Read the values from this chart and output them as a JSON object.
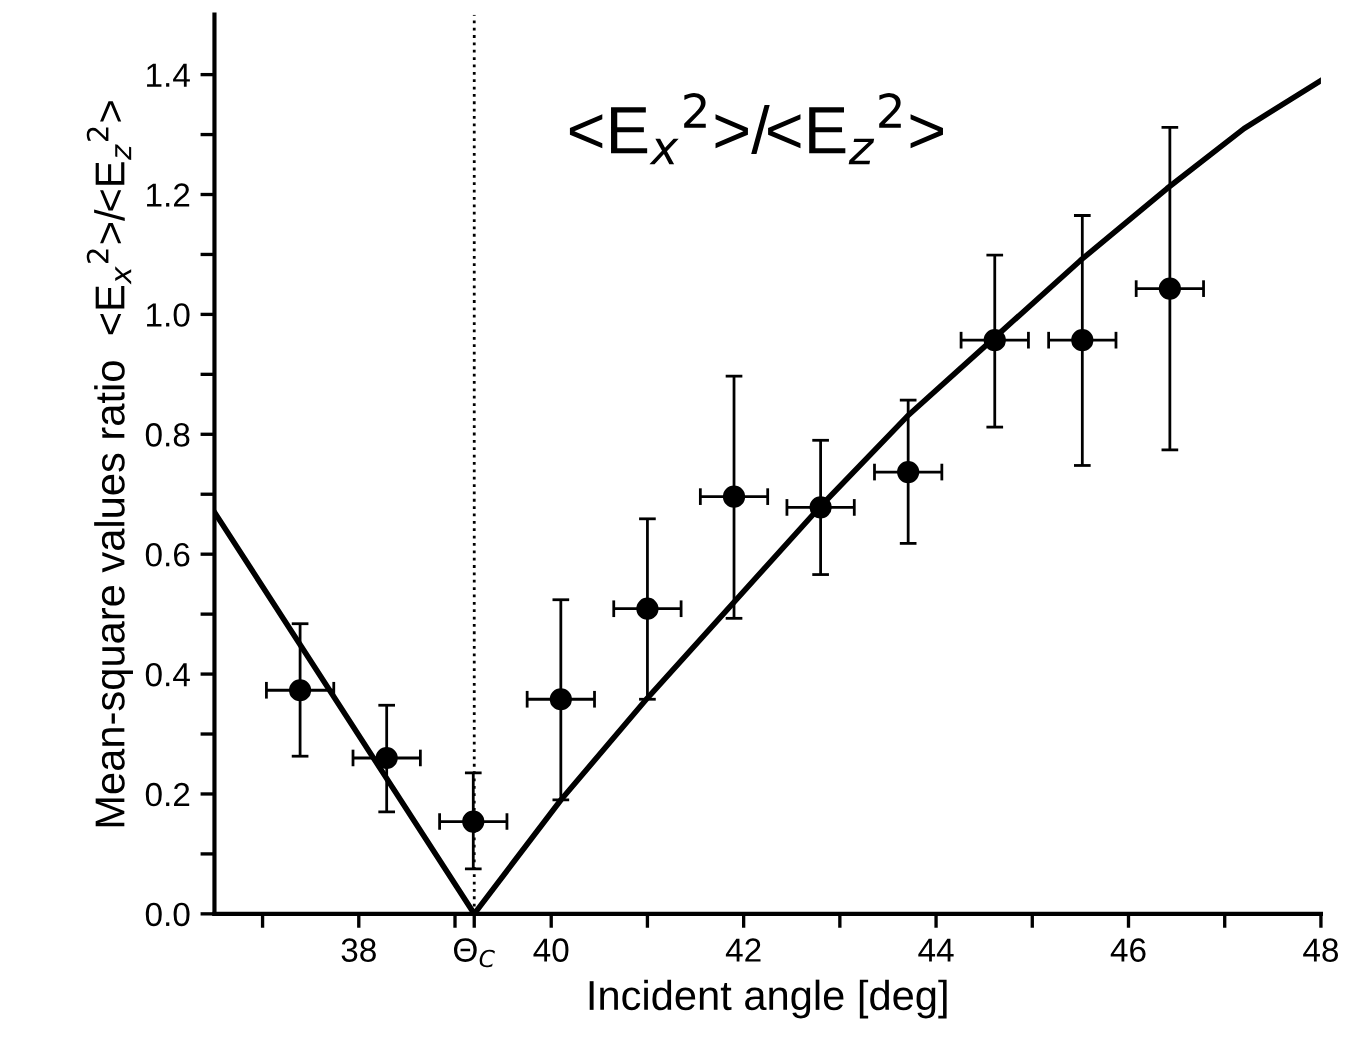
{
  "chart_data": {
    "type": "scatter",
    "xlabel": "Incident angle [deg]",
    "ylabel": "Mean-square values ratio  <E$_{x}$$^{2}$>/<E$_{z}$$^{2}$>",
    "annotations": [
      "<E$_{x}$$^{2}$>/<E$_{z}$$^{2}$>"
    ],
    "xlim": [
      36.5,
      48
    ],
    "ylim": [
      0,
      1.5
    ],
    "xticks": [
      {
        "value": 37,
        "label": null
      },
      38,
      {
        "value": 39,
        "label": null
      },
      {
        "value": 39.2,
        "label": "Θ$_{C}$"
      },
      40,
      {
        "value": 41,
        "label": null
      },
      42,
      {
        "value": 43,
        "label": null
      },
      44,
      {
        "value": 45,
        "label": null
      },
      46,
      {
        "value": 47,
        "label": null
      },
      48
    ],
    "yticks": [
      {
        "value": 0,
        "label": "0.0"
      },
      {
        "value": 0.1,
        "label": null
      },
      {
        "value": 0.2,
        "label": "0.2"
      },
      {
        "value": 0.3,
        "label": null
      },
      {
        "value": 0.4,
        "label": "0.4"
      },
      {
        "value": 0.5,
        "label": null
      },
      {
        "value": 0.6,
        "label": "0.6"
      },
      {
        "value": 0.7,
        "label": null
      },
      {
        "value": 0.8,
        "label": "0.8"
      },
      {
        "value": 0.9,
        "label": null
      },
      {
        "value": 1.0,
        "label": "1.0"
      },
      {
        "value": 1.1,
        "label": null
      },
      {
        "value": 1.2,
        "label": "1.2"
      },
      {
        "value": 1.3,
        "label": null
      },
      {
        "value": 1.4,
        "label": "1.4"
      }
    ],
    "grid": false,
    "legend": false,
    "ref_lines": [
      {
        "axis": "x",
        "value": 39.2,
        "line_style": "dotted",
        "color": "#000000"
      }
    ],
    "series": [
      {
        "type": "line",
        "color": "#000000",
        "marker": "none",
        "line_style": "solid",
        "x": [
          36.5,
          39.2,
          40.1,
          41.0,
          41.9,
          42.8,
          43.7,
          44.6,
          45.5,
          46.4,
          47.2,
          48.0
        ],
        "values": [
          0.67,
          0.0,
          0.19,
          0.36,
          0.52,
          0.68,
          0.83,
          0.96,
          1.09,
          1.21,
          1.31,
          1.39
        ]
      },
      {
        "color": "#000000",
        "marker": "circle",
        "x": [
          37.39,
          38.29,
          39.19,
          40.1,
          41.0,
          41.9,
          42.8,
          43.71,
          44.61,
          45.52,
          46.43
        ],
        "values": [
          0.373,
          0.26,
          0.154,
          0.358,
          0.509,
          0.696,
          0.678,
          0.737,
          0.957,
          0.957,
          1.043
        ],
        "errors": [
          [
            0.263,
            0.484
          ],
          [
            0.17,
            0.348
          ],
          [
            0.075,
            0.235
          ],
          [
            0.19,
            0.524
          ],
          [
            0.358,
            0.659
          ],
          [
            0.493,
            0.897
          ],
          [
            0.566,
            0.79
          ],
          [
            0.618,
            0.857
          ],
          [
            0.812,
            1.099
          ],
          [
            0.748,
            1.165
          ],
          [
            0.774,
            1.312
          ]
        ],
        "xerrors": [
          0.35,
          0.35,
          0.35,
          0.35,
          0.35,
          0.35,
          0.35,
          0.35,
          0.35,
          0.35,
          0.35
        ]
      }
    ]
  }
}
